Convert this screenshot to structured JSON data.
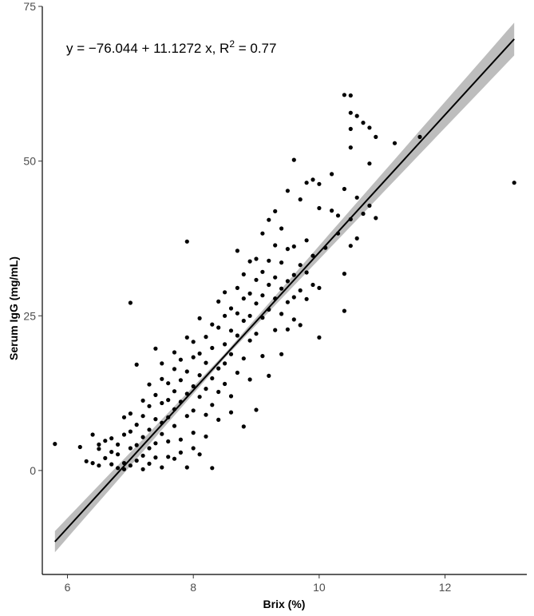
{
  "chart_data": {
    "type": "scatter",
    "xlabel": "Brix (%)",
    "ylabel": "Serum IgG (mg/mL)",
    "xlim": [
      5.6,
      13.3
    ],
    "ylim": [
      -16.8,
      75.0
    ],
    "xticks": [
      6,
      8,
      10,
      12
    ],
    "xtick_labels": [
      "6",
      "8",
      "10",
      "12"
    ],
    "yticks": [
      0,
      25,
      50,
      75
    ],
    "ytick_labels": [
      "0",
      "25",
      "50",
      "75"
    ],
    "grid": false,
    "legend": "none",
    "annotation": {
      "prefix": "y = −76.044 + 11.1272 x, R",
      "superscript": "2",
      "suffix": " = 0.77"
    },
    "regression": {
      "intercept": -76.044,
      "slope": 11.1272,
      "r2": 0.77,
      "x_range": [
        5.8,
        13.1
      ]
    },
    "confidence_band": {
      "se_at_mean": 0.35,
      "se_growth": 0.5,
      "x_mean": 8.5
    },
    "series": [
      {
        "x_note": "points read off the plot",
        "points": [
          [
            5.8,
            4.3
          ],
          [
            6.2,
            3.8
          ],
          [
            6.3,
            1.5
          ],
          [
            6.4,
            5.8
          ],
          [
            6.4,
            1.2
          ],
          [
            6.5,
            4.2
          ],
          [
            6.5,
            3.5
          ],
          [
            6.5,
            0.8
          ],
          [
            6.6,
            4.8
          ],
          [
            6.6,
            2.0
          ],
          [
            6.7,
            1.0
          ],
          [
            6.7,
            5.2
          ],
          [
            6.7,
            3.0
          ],
          [
            6.8,
            0.4
          ],
          [
            6.8,
            2.6
          ],
          [
            6.8,
            4.2
          ],
          [
            6.9,
            8.6
          ],
          [
            6.9,
            1.2
          ],
          [
            6.9,
            5.8
          ],
          [
            6.9,
            0.2
          ],
          [
            7.0,
            27.1
          ],
          [
            7.0,
            9.2
          ],
          [
            7.0,
            3.6
          ],
          [
            7.0,
            0.8
          ],
          [
            7.0,
            6.3
          ],
          [
            7.1,
            17.1
          ],
          [
            7.1,
            1.6
          ],
          [
            7.1,
            7.4
          ],
          [
            7.1,
            4.1
          ],
          [
            7.2,
            11.3
          ],
          [
            7.2,
            2.4
          ],
          [
            7.2,
            0.2
          ],
          [
            7.2,
            8.8
          ],
          [
            7.2,
            5.4
          ],
          [
            7.3,
            13.9
          ],
          [
            7.3,
            1.1
          ],
          [
            7.3,
            10.4
          ],
          [
            7.3,
            6.6
          ],
          [
            7.3,
            3.6
          ],
          [
            7.4,
            19.7
          ],
          [
            7.4,
            8.3
          ],
          [
            7.4,
            12.2
          ],
          [
            7.4,
            4.4
          ],
          [
            7.4,
            2.1
          ],
          [
            7.5,
            17.3
          ],
          [
            7.5,
            14.8
          ],
          [
            7.5,
            0.5
          ],
          [
            7.5,
            7.7
          ],
          [
            7.5,
            10.9
          ],
          [
            7.5,
            5.9
          ],
          [
            7.6,
            14.1
          ],
          [
            7.6,
            2.2
          ],
          [
            7.6,
            11.4
          ],
          [
            7.6,
            8.6
          ],
          [
            7.6,
            4.7
          ],
          [
            7.7,
            19.1
          ],
          [
            7.7,
            16.4
          ],
          [
            7.7,
            12.8
          ],
          [
            7.7,
            1.9
          ],
          [
            7.7,
            7.2
          ],
          [
            7.7,
            9.9
          ],
          [
            7.8,
            17.9
          ],
          [
            7.8,
            14.6
          ],
          [
            7.8,
            5.0
          ],
          [
            7.8,
            11.1
          ],
          [
            7.8,
            2.9
          ],
          [
            7.9,
            37.0
          ],
          [
            7.9,
            21.5
          ],
          [
            7.9,
            16.0
          ],
          [
            7.9,
            12.4
          ],
          [
            7.9,
            8.8
          ],
          [
            7.9,
            0.5
          ],
          [
            8.0,
            20.8
          ],
          [
            8.0,
            18.3
          ],
          [
            8.0,
            13.6
          ],
          [
            8.0,
            6.1
          ],
          [
            8.0,
            9.7
          ],
          [
            8.0,
            3.6
          ],
          [
            8.1,
            24.6
          ],
          [
            8.1,
            15.4
          ],
          [
            8.1,
            11.9
          ],
          [
            8.1,
            18.9
          ],
          [
            8.1,
            2.6
          ],
          [
            8.2,
            21.6
          ],
          [
            8.2,
            17.4
          ],
          [
            8.2,
            9.0
          ],
          [
            8.2,
            13.2
          ],
          [
            8.2,
            5.5
          ],
          [
            8.3,
            23.6
          ],
          [
            8.3,
            19.8
          ],
          [
            8.3,
            14.9
          ],
          [
            8.3,
            0.4
          ],
          [
            8.3,
            10.6
          ],
          [
            8.4,
            27.3
          ],
          [
            8.4,
            23.1
          ],
          [
            8.4,
            16.5
          ],
          [
            8.4,
            12.7
          ],
          [
            8.4,
            8.2
          ],
          [
            8.5,
            28.8
          ],
          [
            8.5,
            20.4
          ],
          [
            8.5,
            25.0
          ],
          [
            8.5,
            17.3
          ],
          [
            8.5,
            14.0
          ],
          [
            8.6,
            26.2
          ],
          [
            8.6,
            22.6
          ],
          [
            8.6,
            18.8
          ],
          [
            8.6,
            9.4
          ],
          [
            8.6,
            12.0
          ],
          [
            8.7,
            35.5
          ],
          [
            8.7,
            29.5
          ],
          [
            8.7,
            21.8
          ],
          [
            8.7,
            15.8
          ],
          [
            8.7,
            25.4
          ],
          [
            8.8,
            31.7
          ],
          [
            8.8,
            27.8
          ],
          [
            8.8,
            24.2
          ],
          [
            8.8,
            7.1
          ],
          [
            8.8,
            18.1
          ],
          [
            8.9,
            33.8
          ],
          [
            8.9,
            21.0
          ],
          [
            8.9,
            28.6
          ],
          [
            8.9,
            25.0
          ],
          [
            8.9,
            14.7
          ],
          [
            9.0,
            34.2
          ],
          [
            9.0,
            30.8
          ],
          [
            9.0,
            27.0
          ],
          [
            9.0,
            22.1
          ],
          [
            9.0,
            9.8
          ],
          [
            9.1,
            38.3
          ],
          [
            9.1,
            32.1
          ],
          [
            9.1,
            28.3
          ],
          [
            9.1,
            18.5
          ],
          [
            9.1,
            24.7
          ],
          [
            9.2,
            40.5
          ],
          [
            9.2,
            33.9
          ],
          [
            9.2,
            30.0
          ],
          [
            9.2,
            15.3
          ],
          [
            9.2,
            26.0
          ],
          [
            9.3,
            41.9
          ],
          [
            9.3,
            36.4
          ],
          [
            9.3,
            31.2
          ],
          [
            9.3,
            22.7
          ],
          [
            9.3,
            27.8
          ],
          [
            9.4,
            39.1
          ],
          [
            9.4,
            33.6
          ],
          [
            9.4,
            29.4
          ],
          [
            9.4,
            25.3
          ],
          [
            9.4,
            18.8
          ],
          [
            9.5,
            45.2
          ],
          [
            9.5,
            35.8
          ],
          [
            9.5,
            30.6
          ],
          [
            9.5,
            27.2
          ],
          [
            9.5,
            22.8
          ],
          [
            9.6,
            50.2
          ],
          [
            9.6,
            36.2
          ],
          [
            9.6,
            31.6
          ],
          [
            9.6,
            24.4
          ],
          [
            9.6,
            28.0
          ],
          [
            9.7,
            43.8
          ],
          [
            9.7,
            33.2
          ],
          [
            9.7,
            29.1
          ],
          [
            9.7,
            23.5
          ],
          [
            9.8,
            46.5
          ],
          [
            9.8,
            37.2
          ],
          [
            9.8,
            32.0
          ],
          [
            9.8,
            27.7
          ],
          [
            9.9,
            47.0
          ],
          [
            9.9,
            34.7
          ],
          [
            9.9,
            30.0
          ],
          [
            10.0,
            46.3
          ],
          [
            10.0,
            42.4
          ],
          [
            10.0,
            29.5
          ],
          [
            10.0,
            21.5
          ],
          [
            10.1,
            36.0
          ],
          [
            10.2,
            47.9
          ],
          [
            10.2,
            42.0
          ],
          [
            10.3,
            41.2
          ],
          [
            10.3,
            38.3
          ],
          [
            10.4,
            60.7
          ],
          [
            10.4,
            45.5
          ],
          [
            10.4,
            31.8
          ],
          [
            10.4,
            25.8
          ],
          [
            10.5,
            60.6
          ],
          [
            10.5,
            57.8
          ],
          [
            10.5,
            55.2
          ],
          [
            10.5,
            52.2
          ],
          [
            10.5,
            40.6
          ],
          [
            10.5,
            36.3
          ],
          [
            10.6,
            57.3
          ],
          [
            10.6,
            44.1
          ],
          [
            10.6,
            37.5
          ],
          [
            10.7,
            56.2
          ],
          [
            10.7,
            41.5
          ],
          [
            10.8,
            55.4
          ],
          [
            10.8,
            49.6
          ],
          [
            10.8,
            42.8
          ],
          [
            10.9,
            53.9
          ],
          [
            10.9,
            40.8
          ],
          [
            11.2,
            52.9
          ],
          [
            11.6,
            53.9
          ],
          [
            13.1,
            46.5
          ]
        ]
      }
    ]
  }
}
